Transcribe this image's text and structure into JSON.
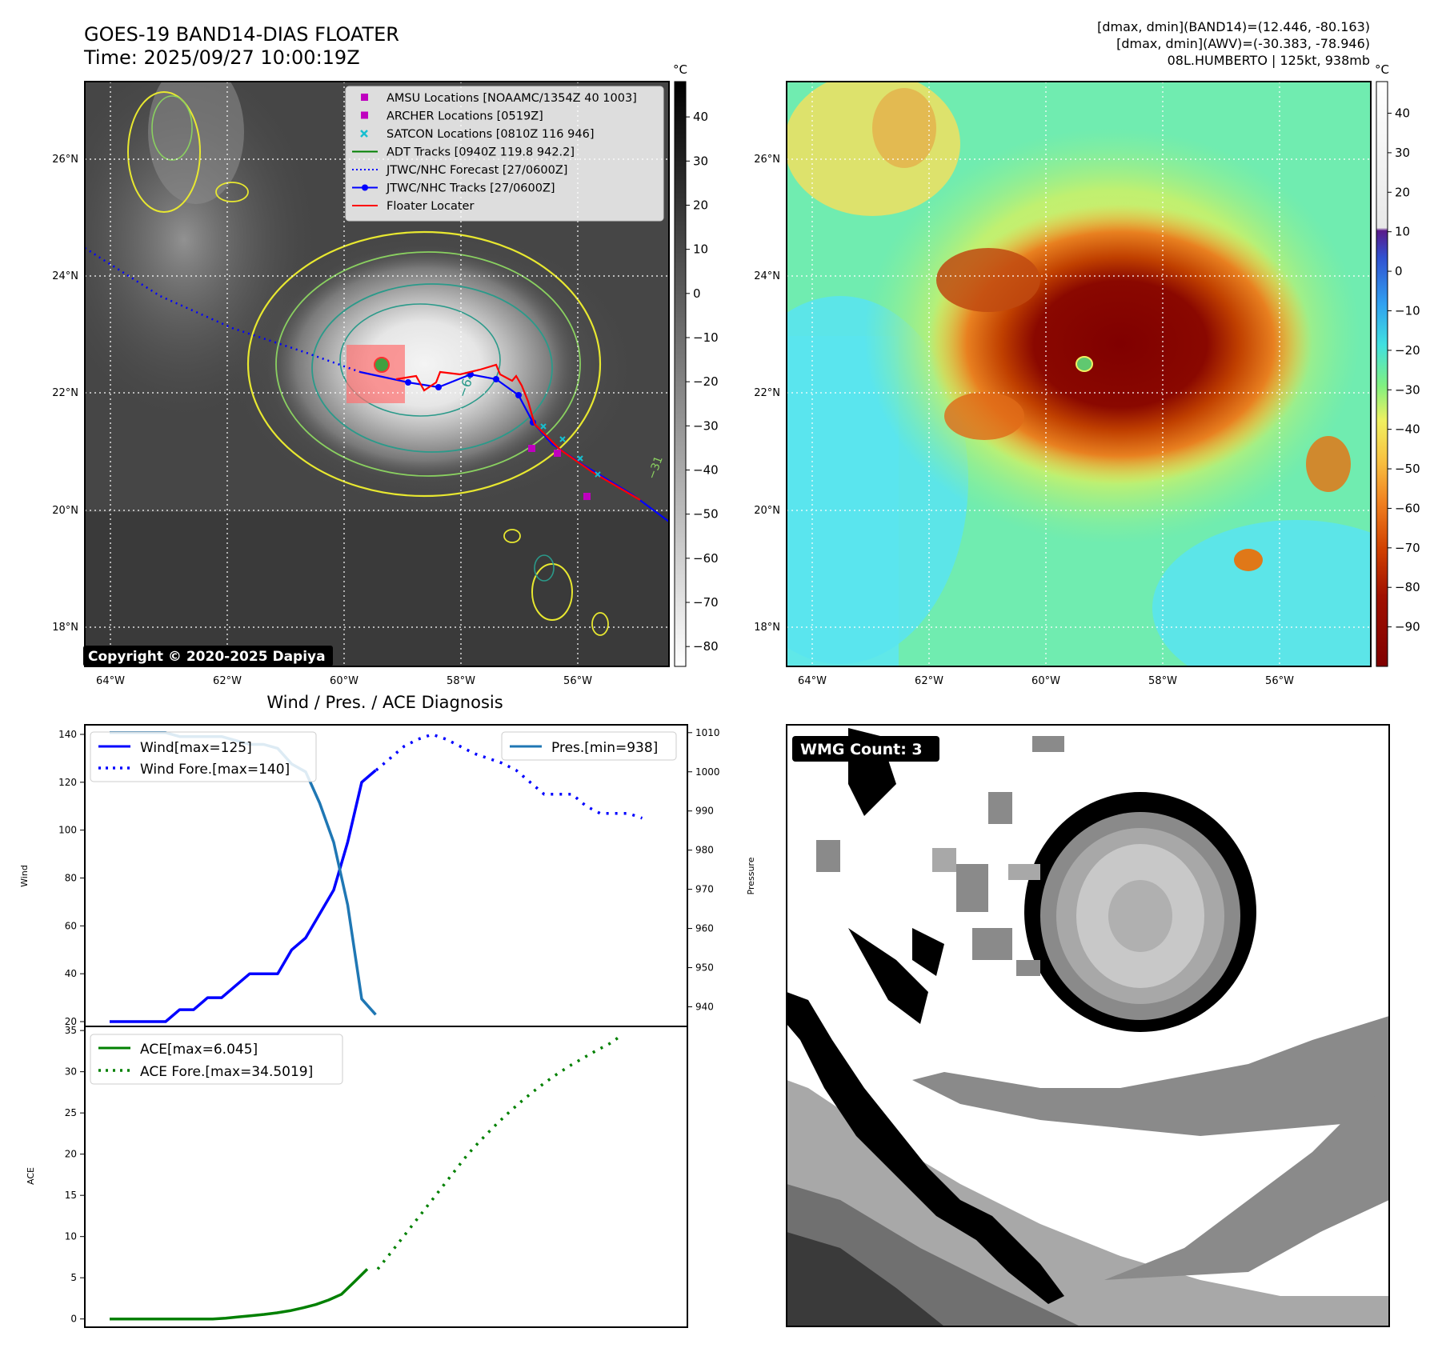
{
  "header": {
    "title": "GOES-19 BAND14-DIAS FLOATER",
    "time": "Time: 2025/09/27 10:00:19Z",
    "info_line1": "[dmax, dmin](BAND14)=(12.446, -80.163)",
    "info_line2": "[dmax, dmin](AWV)=(-30.383, -78.946)",
    "info_line3": "08L.HUMBERTO | 125kt, 938mb"
  },
  "copyright": "Copyright © 2020-2025 Dapiya",
  "colorbar_unit": "°C",
  "colorbar_left_ticks": [
    "40",
    "30",
    "20",
    "10",
    "0",
    "−10",
    "−20",
    "−30",
    "−40",
    "−50",
    "−60",
    "−70",
    "−80"
  ],
  "colorbar_right_ticks": [
    "40",
    "30",
    "20",
    "10",
    "0",
    "−10",
    "−20",
    "−30",
    "−40",
    "−50",
    "−60",
    "−70",
    "−80",
    "−90"
  ],
  "map_lat_labels": [
    "26°N",
    "24°N",
    "22°N",
    "20°N",
    "18°N"
  ],
  "map_lon_labels": [
    "64°W",
    "62°W",
    "60°W",
    "58°W",
    "56°W"
  ],
  "legend_map": [
    {
      "label": "AMSU Locations [NOAAMC/1354Z 40 1003]",
      "marker": "square",
      "color": "#bf00bf"
    },
    {
      "label": "ARCHER Locations [0519Z]",
      "marker": "square",
      "color": "#bf00bf"
    },
    {
      "label": "SATCON Locations [0810Z 116 946]",
      "marker": "x",
      "color": "#17becf"
    },
    {
      "label": "ADT Tracks [0940Z 119.8 942.2]",
      "marker": "line",
      "color": "#008000"
    },
    {
      "label": "JTWC/NHC Forecast [27/0600Z]",
      "marker": "dotted",
      "color": "#0000ff"
    },
    {
      "label": "JTWC/NHC Tracks [27/0600Z]",
      "marker": "line-dot",
      "color": "#0000ff"
    },
    {
      "label": "Floater Locater",
      "marker": "line",
      "color": "#ff0000"
    }
  ],
  "contour_labels": [
    "−64",
    "−31"
  ],
  "wmg": {
    "label": "WMG Count: 3"
  },
  "chart_data": [
    {
      "type": "line",
      "title": "Wind / Pres. / ACE Diagnosis",
      "ylabel": "Wind",
      "ylim": [
        18,
        144
      ],
      "yticks": [
        20,
        40,
        60,
        80,
        100,
        120,
        140
      ],
      "series": [
        {
          "name": "Wind[max=125]",
          "style": "solid",
          "color": "#0000ff",
          "values": [
            20,
            20,
            20,
            20,
            20,
            25,
            25,
            30,
            30,
            35,
            40,
            40,
            40,
            50,
            55,
            65,
            75,
            95,
            120,
            125
          ]
        },
        {
          "name": "Wind Fore.[max=140]",
          "style": "dotted",
          "color": "#0000ff",
          "values": [
            125,
            130,
            135,
            138,
            140,
            138,
            135,
            132,
            130,
            128,
            125,
            120,
            115,
            115,
            115,
            110,
            107,
            107,
            107,
            105
          ]
        }
      ]
    },
    {
      "type": "line",
      "ylabel": "Pressure",
      "ylim": [
        935,
        1012
      ],
      "yticks": [
        940,
        950,
        960,
        970,
        980,
        990,
        1000,
        1010
      ],
      "series": [
        {
          "name": "Pres.[min=938]",
          "style": "solid",
          "color": "#1f77b4",
          "values": [
            1010,
            1010,
            1010,
            1010,
            1010,
            1009,
            1009,
            1009,
            1009,
            1008,
            1007,
            1007,
            1006,
            1002,
            1000,
            992,
            982,
            966,
            942,
            938
          ]
        }
      ]
    },
    {
      "type": "line",
      "ylabel": "ACE",
      "ylim": [
        -1,
        35.5
      ],
      "yticks": [
        0,
        5,
        10,
        15,
        20,
        25,
        30,
        35
      ],
      "series": [
        {
          "name": "ACE[max=6.045]",
          "style": "solid",
          "color": "#008000",
          "values": [
            0,
            0,
            0,
            0,
            0,
            0,
            0,
            0,
            0,
            0.1,
            0.25,
            0.4,
            0.55,
            0.75,
            1,
            1.35,
            1.75,
            2.3,
            3,
            4.5,
            6.045
          ]
        },
        {
          "name": "ACE Fore.[max=34.5019]",
          "style": "dotted",
          "color": "#008000",
          "values": [
            6.045,
            8,
            10,
            12,
            14,
            16,
            18,
            20,
            21.7,
            23.3,
            24.8,
            26.2,
            27.5,
            28.7,
            29.8,
            30.8,
            31.7,
            32.6,
            33.4,
            34.5019
          ]
        }
      ]
    }
  ]
}
